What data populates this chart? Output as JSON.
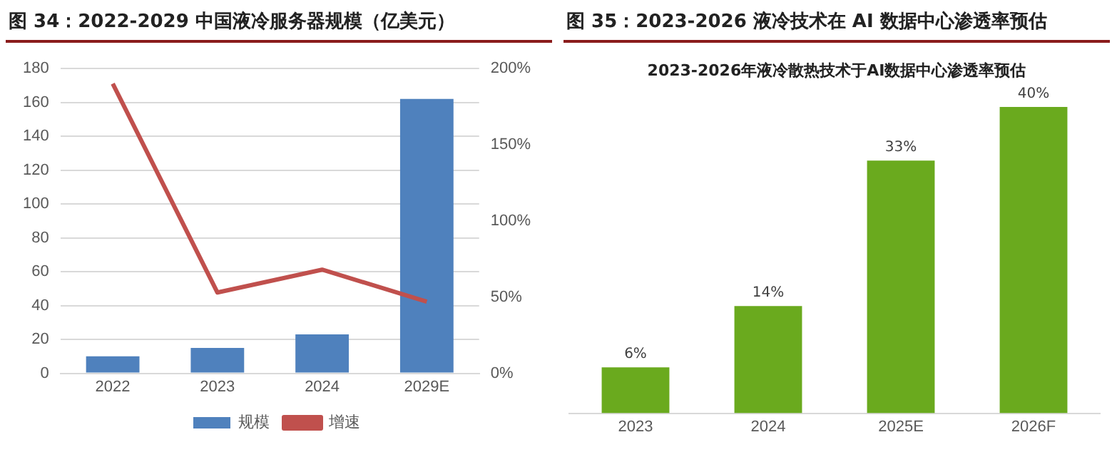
{
  "chart_data": [
    {
      "type": "bar",
      "title": "图 34：2022-2029 中国液冷服务器规模（亿美元）",
      "categories": [
        "2022",
        "2023",
        "2024",
        "2029E"
      ],
      "series": [
        {
          "name": "规模",
          "type": "bar",
          "color": "#4f81bd",
          "values": [
            10,
            15,
            23,
            162
          ]
        },
        {
          "name": "增速",
          "type": "line",
          "axis": "y2",
          "color": "#c0504d",
          "marker": "none",
          "values": [
            190,
            53,
            68,
            47
          ]
        }
      ],
      "ylim": [
        0,
        180
      ],
      "yticks": [
        0,
        20,
        40,
        60,
        80,
        100,
        120,
        140,
        160,
        180
      ],
      "y2lim": [
        0,
        200
      ],
      "y2ticks": [
        {
          "value": 0,
          "label": "0%"
        },
        {
          "value": 50,
          "label": "50%"
        },
        {
          "value": 100,
          "label": "100%"
        },
        {
          "value": 150,
          "label": "150%"
        },
        {
          "value": 200,
          "label": "200%"
        }
      ],
      "grid": "y",
      "legend": "bottom"
    },
    {
      "type": "bar",
      "title": "图 35：2023-2026 液冷技术在 AI 数据中心渗透率预估",
      "subtitle": "2023-2026年液冷散热技术于AI数据中心渗透率预估",
      "categories": [
        "2023",
        "2024",
        "2025E",
        "2026F"
      ],
      "values": [
        6,
        14,
        33,
        40
      ],
      "color": "#6aaa1e",
      "value_labels": [
        "6%",
        "14%",
        "33%",
        "40%"
      ],
      "grid": false,
      "tick_labels": "x"
    }
  ]
}
